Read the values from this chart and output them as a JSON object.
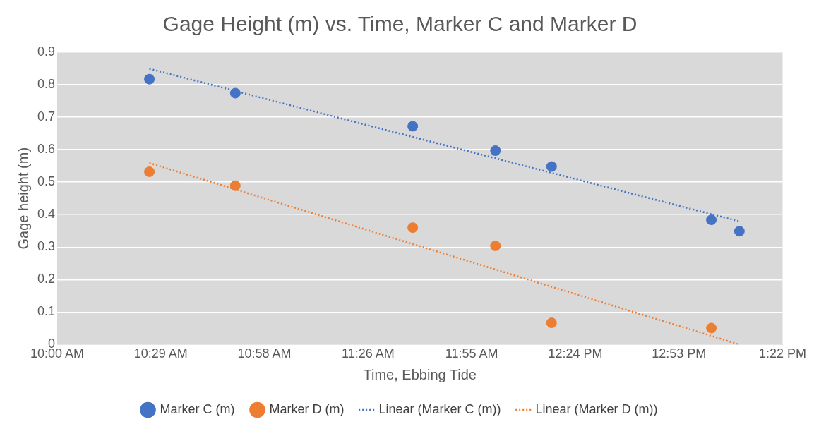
{
  "chart_data": {
    "type": "scatter",
    "title": "Gage Height (m) vs. Time, Marker C and Marker D",
    "xlabel": "Time, Ebbing Tide",
    "ylabel": "Gage height (m)",
    "series": [
      {
        "name": "Marker C (m)",
        "type": "scatter",
        "marker": "circle",
        "color": "#4472c4",
        "x": [
          10.427,
          10.825,
          11.647,
          12.03,
          12.29,
          13.03,
          13.16
        ],
        "values": [
          0.817,
          0.774,
          0.672,
          0.597,
          0.548,
          0.384,
          0.349
        ]
      },
      {
        "name": "Marker D (m)",
        "type": "scatter",
        "marker": "circle",
        "color": "#ed7d31",
        "x": [
          10.427,
          10.825,
          11.647,
          12.03,
          12.29,
          13.03
        ],
        "values": [
          0.532,
          0.489,
          0.36,
          0.304,
          0.067,
          0.051
        ]
      },
      {
        "name": "Linear (Marker C (m))",
        "type": "line",
        "marker": "none",
        "line_style": "dotted",
        "color": "#4472c4",
        "x": [
          10.427,
          13.16
        ],
        "values": [
          0.849,
          0.379
        ]
      },
      {
        "name": "Linear (Marker D (m))",
        "type": "line",
        "marker": "none",
        "line_style": "dotted",
        "color": "#ed7d31",
        "x": [
          10.427,
          13.16
        ],
        "values": [
          0.559,
          0.0
        ]
      }
    ],
    "xlim": [
      10,
      13.36
    ],
    "xticks": [
      {
        "value": 10,
        "label": "10:00 AM"
      },
      {
        "value": 10.48,
        "label": "10:29 AM"
      },
      {
        "value": 10.96,
        "label": "10:58 AM"
      },
      {
        "value": 11.44,
        "label": "11:26 AM"
      },
      {
        "value": 11.92,
        "label": "11:55 AM"
      },
      {
        "value": 12.4,
        "label": "12:24 PM"
      },
      {
        "value": 12.88,
        "label": "12:53 PM"
      },
      {
        "value": 13.36,
        "label": "1:22 PM"
      }
    ],
    "ylim": [
      0,
      0.9
    ],
    "yticks": [
      0,
      0.1,
      0.2,
      0.3,
      0.4,
      0.5,
      0.6,
      0.7,
      0.8,
      0.9
    ],
    "grid": "y",
    "legend": "bottom"
  }
}
